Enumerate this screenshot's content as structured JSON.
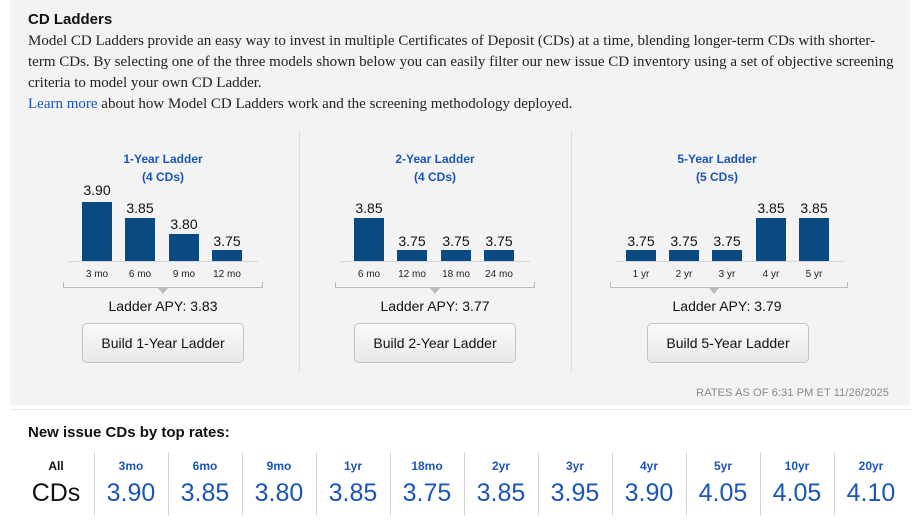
{
  "header": {
    "title": "CD Ladders",
    "intro": "Model CD Ladders provide an easy way to invest in multiple Certificates of Deposit (CDs) at a time, blending longer-term CDs with shorter-term CDs. By selecting one of the three models shown below you can easily filter our new issue CD inventory using a set of objective screening criteria to model your own CD Ladder.",
    "learn_link": "Learn more",
    "learn_rest": " about how Model CD Ladders work and the screening methodology deployed."
  },
  "ladders": [
    {
      "name": "1-Year Ladder",
      "count": "(4 CDs)",
      "values": [
        "3.90",
        "3.85",
        "3.80",
        "3.75"
      ],
      "terms": [
        "3 mo",
        "6 mo",
        "9 mo",
        "12 mo"
      ],
      "apy": "Ladder APY: 3.83",
      "button": "Build 1-Year Ladder"
    },
    {
      "name": "2-Year Ladder",
      "count": "(4 CDs)",
      "values": [
        "3.85",
        "3.75",
        "3.75",
        "3.75"
      ],
      "terms": [
        "6 mo",
        "12 mo",
        "18 mo",
        "24 mo"
      ],
      "apy": "Ladder APY: 3.77",
      "button": "Build 2-Year Ladder"
    },
    {
      "name": "5-Year Ladder",
      "count": "(5 CDs)",
      "values": [
        "3.75",
        "3.75",
        "3.75",
        "3.85",
        "3.85"
      ],
      "terms": [
        "1 yr",
        "2 yr",
        "3 yr",
        "4 yr",
        "5 yr"
      ],
      "apy": "Ladder APY: 3.79",
      "button": "Build 5-Year Ladder"
    }
  ],
  "rates_as_of": "RATES AS OF 6:31 PM ET 11/26/2025",
  "new_issue": {
    "title": "New issue CDs by top rates:",
    "all_label": "All",
    "all_value": "CDs",
    "rates": [
      {
        "term": "3mo",
        "rate": "3.90"
      },
      {
        "term": "6mo",
        "rate": "3.85"
      },
      {
        "term": "9mo",
        "rate": "3.80"
      },
      {
        "term": "1yr",
        "rate": "3.85"
      },
      {
        "term": "18mo",
        "rate": "3.75"
      },
      {
        "term": "2yr",
        "rate": "3.85"
      },
      {
        "term": "3yr",
        "rate": "3.95"
      },
      {
        "term": "4yr",
        "rate": "3.90"
      },
      {
        "term": "5yr",
        "rate": "4.05"
      },
      {
        "term": "10yr",
        "rate": "4.05"
      },
      {
        "term": "20yr",
        "rate": "4.10"
      }
    ]
  },
  "colors": {
    "bar": "#0a4a82",
    "link": "#1a55b7",
    "panel": "#f3f3f3"
  }
}
